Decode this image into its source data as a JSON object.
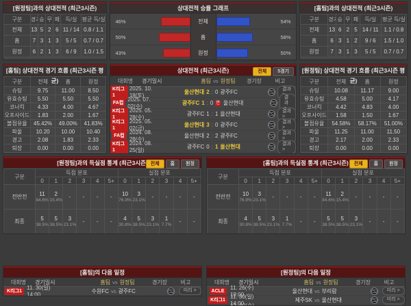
{
  "colors": {
    "accent_red": "#7d1a1a",
    "badge_red": "#c01d1d",
    "winner_yellow": "#e7c63a",
    "bar_red": "#c12727",
    "bar_blue": "#3253c6",
    "tab_active_bg": "#e8b41e"
  },
  "top_left": {
    "title": "[원정팀]과의 상대전적 (최근3시즌)",
    "columns": [
      "구분",
      "경기",
      "승",
      "무",
      "패",
      "득/실",
      "평균 득/실"
    ],
    "rows": [
      {
        "label": "전체",
        "values": [
          "13",
          "5",
          "2",
          "6",
          "11 / 14",
          "0.8 / 1.1"
        ]
      },
      {
        "label": "홈",
        "values": [
          "7",
          "3",
          "1",
          "3",
          "5 / 5",
          "0.7 / 0.7"
        ]
      },
      {
        "label": "원정",
        "values": [
          "6",
          "2",
          "1",
          "3",
          "6 / 9",
          "1.0 / 1.5"
        ]
      }
    ]
  },
  "top_right": {
    "title": "[홈팀]과의 상대전적 (최근3시즌)",
    "columns": [
      "구분",
      "경기",
      "승",
      "무",
      "패",
      "득/실",
      "평균 득/실"
    ],
    "rows": [
      {
        "label": "전체",
        "values": [
          "13",
          "6",
          "2",
          "5",
          "14 / 11",
          "1.1 / 0.8"
        ]
      },
      {
        "label": "홈",
        "values": [
          "6",
          "3",
          "1",
          "2",
          "9 / 6",
          "1.5 / 1.0"
        ]
      },
      {
        "label": "원정",
        "values": [
          "7",
          "3",
          "1",
          "3",
          "5 / 5",
          "0.7 / 0.7"
        ]
      }
    ]
  },
  "chart": {
    "title": "상대전적 승률 그래프",
    "chart_data": {
      "type": "bar",
      "categories": [
        "전체",
        "홈",
        "원정"
      ],
      "series": [
        {
          "name": "홈팀 승률",
          "values": [
            46,
            50,
            43
          ]
        },
        {
          "name": "원정팀 승률",
          "values": [
            54,
            58,
            50
          ]
        }
      ],
      "unit": "%",
      "xlim": [
        0,
        100
      ],
      "legend_position": "none"
    },
    "rows": [
      {
        "label": "전체",
        "left": "46%",
        "right": "54%"
      },
      {
        "label": "홈",
        "left": "50%",
        "right": "58%"
      },
      {
        "label": "원정",
        "left": "43%",
        "right": "50%"
      }
    ]
  },
  "home_flow": {
    "title": "[홈팀] 상대전적 경기 흐름 (최근3시즌 평균)",
    "columns": [
      "구분",
      "전체",
      "홈",
      "원정"
    ],
    "rows": [
      {
        "label": "슈팅",
        "values": [
          "9.75",
          "11.00",
          "8.50"
        ]
      },
      {
        "label": "유효슈팅",
        "values": [
          "5.50",
          "5.50",
          "5.50"
        ]
      },
      {
        "label": "코너킥",
        "values": [
          "4.33",
          "4.00",
          "4.67"
        ]
      },
      {
        "label": "오프사이드",
        "values": [
          "1.83",
          "2.00",
          "1.67"
        ]
      },
      {
        "label": "볼점유율",
        "values": [
          "45.42%",
          "49.00%",
          "41.83%"
        ]
      },
      {
        "label": "파울",
        "values": [
          "10.20",
          "10.00",
          "10.40"
        ]
      },
      {
        "label": "경고",
        "values": [
          "2.08",
          "1.83",
          "2.33"
        ]
      },
      {
        "label": "퇴장",
        "values": [
          "0.00",
          "0.00",
          "0.00"
        ]
      }
    ]
  },
  "away_flow": {
    "title": "[원정팀] 상대전적 경기 흐름 (최근3시즌 평균)",
    "columns": [
      "구분",
      "전체",
      "홈",
      "원정"
    ],
    "rows": [
      {
        "label": "슈팅",
        "values": [
          "10.08",
          "11.17",
          "9.00"
        ]
      },
      {
        "label": "유효슈팅",
        "values": [
          "4.58",
          "5.00",
          "4.17"
        ]
      },
      {
        "label": "코너킥",
        "values": [
          "4.42",
          "4.83",
          "4.00"
        ]
      },
      {
        "label": "오프사이드",
        "values": [
          "1.58",
          "1.50",
          "1.67"
        ]
      },
      {
        "label": "볼점유율",
        "values": [
          "54.58%",
          "58.17%",
          "51.00%"
        ]
      },
      {
        "label": "파울",
        "values": [
          "11.25",
          "11.00",
          "11.50"
        ]
      },
      {
        "label": "경고",
        "values": [
          "2.17",
          "2.00",
          "2.33"
        ]
      },
      {
        "label": "퇴장",
        "values": [
          "0.00",
          "0.00",
          "0.00"
        ]
      }
    ]
  },
  "h2h": {
    "title": "상대전적 (최근3시즌)",
    "tabs": [
      {
        "label": "전체",
        "active": true
      },
      {
        "label": "5경기",
        "active": false
      }
    ],
    "columns": {
      "league": "대회명",
      "date": "경기일시",
      "home": "홈팀",
      "vs": "vs",
      "away": "원정팀",
      "stadium": "경기장",
      "note": "비고"
    },
    "result_label": "결과 >",
    "rows": [
      {
        "league": "K리그1",
        "date": "2025. 10. 18(토)",
        "home": "울산현대",
        "away": "광주FC",
        "hs": "2",
        "as": "0",
        "winner": "home",
        "note": ""
      },
      {
        "league": "FA컵",
        "date": "2025. 07. 02(수)",
        "home": "광주FC",
        "away": "울산현대",
        "hs": "1",
        "as": "0",
        "winner": "home",
        "note": "연"
      },
      {
        "league": "K리그1",
        "date": "2025. 05. 28(수)",
        "home": "광주FC",
        "away": "울산현대",
        "hs": "1",
        "as": "1",
        "winner": "",
        "note": ""
      },
      {
        "league": "K리그1",
        "date": "2025. 05. 02(금)",
        "home": "울산현대",
        "away": "광주FC",
        "hs": "3",
        "as": "0",
        "winner": "home",
        "note": ""
      },
      {
        "league": "FA컵",
        "date": "2024. 08. 28(수)",
        "home": "울산현대",
        "away": "광주FC",
        "hs": "2",
        "as": "2",
        "winner": "",
        "note": ""
      },
      {
        "league": "K리그1",
        "date": "2024. 08. 25(일)",
        "home": "광주FC",
        "away": "울산현대",
        "hs": "0",
        "as": "1",
        "winner": "away",
        "note": ""
      }
    ]
  },
  "away_dist": {
    "title": "[원정팀]과의 득실점 통계 (최근3시즌)",
    "tabs": [
      {
        "label": "전체",
        "active": true
      },
      {
        "label": "홈",
        "active": false
      },
      {
        "label": "원정",
        "active": false
      }
    ],
    "col_group_label": "구분",
    "groups": [
      "득점 분포",
      "실점 분포"
    ],
    "cols": [
      "0",
      "1",
      "2",
      "3",
      "4",
      "5+"
    ],
    "rows": [
      {
        "label": "전반전",
        "score": [
          {
            "n": "11",
            "p": "84.6%"
          },
          {
            "n": "2",
            "p": "15.4%"
          },
          null,
          null,
          null,
          null
        ],
        "concede": [
          {
            "n": "10",
            "p": "76.9%"
          },
          {
            "n": "3",
            "p": "23.1%"
          },
          null,
          null,
          null,
          null
        ]
      },
      {
        "label": "최종",
        "score": [
          {
            "n": "5",
            "p": "38.5%"
          },
          {
            "n": "5",
            "p": "38.5%"
          },
          {
            "n": "3",
            "p": "23.1%"
          },
          null,
          null,
          null
        ],
        "concede": [
          {
            "n": "4",
            "p": "30.8%"
          },
          {
            "n": "5",
            "p": "38.5%"
          },
          {
            "n": "3",
            "p": "23.1%"
          },
          {
            "n": "1",
            "p": "7.7%"
          },
          null,
          null
        ]
      }
    ]
  },
  "home_dist": {
    "title": "[홈팀]과의 득실점 통계 (최근3시즌)",
    "tabs": [
      {
        "label": "전체",
        "active": true
      },
      {
        "label": "홈",
        "active": false
      },
      {
        "label": "원정",
        "active": false
      }
    ],
    "col_group_label": "구분",
    "groups": [
      "득점 분포",
      "실점 분포"
    ],
    "cols": [
      "0",
      "1",
      "2",
      "3",
      "4",
      "5+"
    ],
    "rows": [
      {
        "label": "전반전",
        "score": [
          {
            "n": "10",
            "p": "76.9%"
          },
          {
            "n": "3",
            "p": "23.1%"
          },
          null,
          null,
          null,
          null
        ],
        "concede": [
          {
            "n": "11",
            "p": "84.6%"
          },
          {
            "n": "2",
            "p": "15.4%"
          },
          null,
          null,
          null,
          null
        ]
      },
      {
        "label": "최종",
        "score": [
          {
            "n": "4",
            "p": "30.8%"
          },
          {
            "n": "5",
            "p": "38.5%"
          },
          {
            "n": "3",
            "p": "23.1%"
          },
          {
            "n": "1",
            "p": "7.7%"
          },
          null,
          null
        ],
        "concede": [
          {
            "n": "5",
            "p": "38.5%"
          },
          {
            "n": "5",
            "p": "38.5%"
          },
          {
            "n": "3",
            "p": "23.1%"
          },
          null,
          null,
          null
        ]
      }
    ]
  },
  "home_next": {
    "title": "[홈팀]의 다음 일정",
    "columns": {
      "league": "대회명",
      "date": "경기일시",
      "home": "홈팀",
      "vs": "vs",
      "away": "원정팀",
      "stadium": "경기장",
      "note": "비고"
    },
    "preview_label": "미리 >",
    "rows": [
      {
        "league": "K리그1",
        "date": "11. 30(일) 14:00",
        "home": "수원FC",
        "away": "광주FC"
      }
    ]
  },
  "away_next": {
    "title": "[원정팀]의 다음 일정",
    "columns": {
      "league": "대회명",
      "date": "경기일시",
      "home": "홈팀",
      "vs": "vs",
      "away": "원정팀",
      "stadium": "경기장",
      "note": "비고"
    },
    "preview_label": "미리 >",
    "rows": [
      {
        "league": "ACLE",
        "date": "11. 26(수) 19:00",
        "home": "울산현대",
        "away": "부리람"
      },
      {
        "league": "K리그1",
        "date": "11. 30(일) 14:00",
        "home": "제주SK",
        "away": "울산현대"
      },
      {
        "league": "ACLE",
        "date": "12. 10(수) 19:00",
        "home": "FC마치다",
        "away": "울산현대"
      }
    ]
  }
}
